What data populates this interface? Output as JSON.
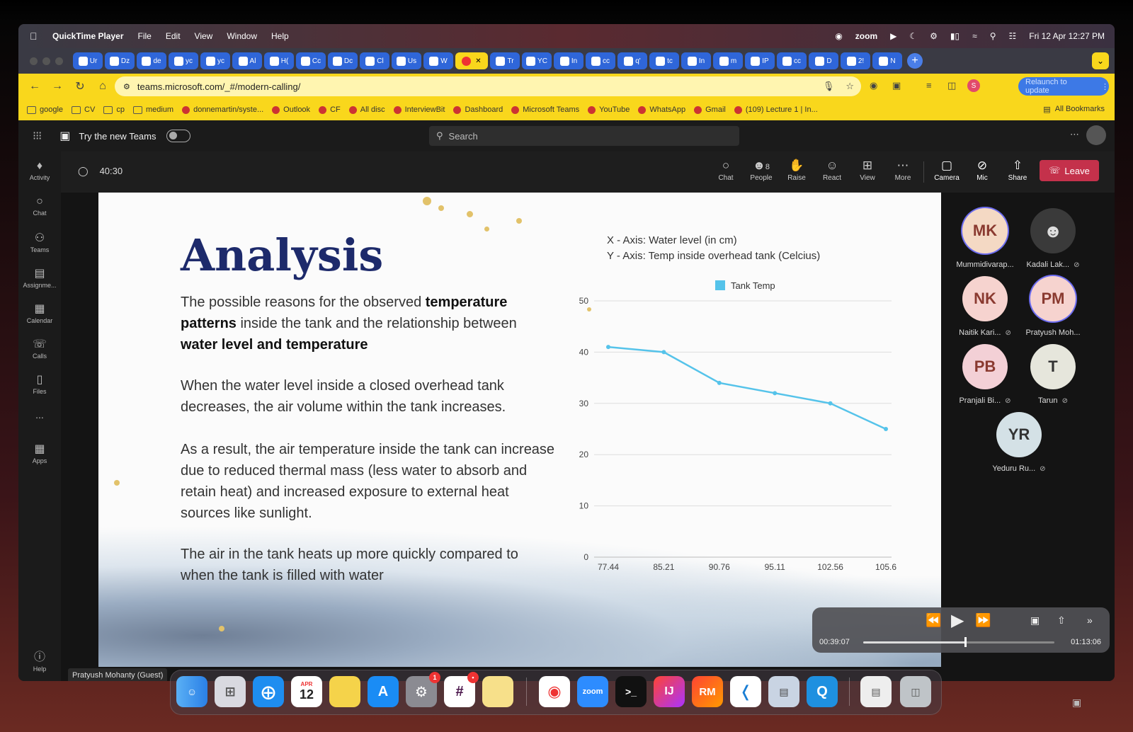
{
  "menubar": {
    "app_name": "QuickTime Player",
    "menus": [
      "File",
      "Edit",
      "View",
      "Window",
      "Help"
    ],
    "zoom_label": "zoom",
    "datetime": "Fri 12 Apr  12:27 PM"
  },
  "browser": {
    "tabs": [
      "Ur",
      "Dz",
      "de",
      "yc",
      "yc",
      "Al",
      "H(",
      "Cc",
      "Dc",
      "Cl",
      "Us",
      "W",
      "",
      "Tr",
      "YC",
      "In",
      "cc",
      "q'",
      "tc",
      "In",
      "m",
      "IP",
      "cc",
      "D",
      "2!",
      "N"
    ],
    "url": "teams.microsoft.com/_#/modern-calling/",
    "relaunch_label": "Relaunch to update",
    "bookmarks": [
      "google",
      "CV",
      "cp",
      "medium",
      "donnemartin/syste...",
      "Outlook",
      "CF",
      "All disc",
      "InterviewBit",
      "Dashboard",
      "Microsoft Teams",
      "YouTube",
      "WhatsApp",
      "Gmail",
      "(109) Lecture 1 | In..."
    ],
    "all_bookmarks": "All Bookmarks"
  },
  "teams": {
    "try_new": "Try the new Teams",
    "search_placeholder": "Search",
    "rail": [
      "Activity",
      "Chat",
      "Teams",
      "Assignme...",
      "Calendar",
      "Calls",
      "Files",
      "...",
      "Apps",
      "Help"
    ],
    "timer": "40:30",
    "toolbar": {
      "chat": "Chat",
      "people": "People",
      "people_count": "8",
      "raise": "Raise",
      "react": "React",
      "view": "View",
      "more": "More",
      "camera": "Camera",
      "mic": "Mic",
      "share": "Share",
      "leave": "Leave"
    },
    "presenter_tag": "Pratyush Mohanty (Guest)",
    "participants": [
      {
        "initials": "MK",
        "name": "Mummidivarap...",
        "color": "#f4d9c4"
      },
      {
        "initials": "",
        "name": "Kadali Lak...",
        "color": "#3a3a3a"
      },
      {
        "initials": "NK",
        "name": "Naitik Kari...",
        "color": "#f6d3cf"
      },
      {
        "initials": "PM",
        "name": "Pratyush Moh...",
        "color": "#f6d3cf"
      },
      {
        "initials": "PB",
        "name": "Pranjali Bi...",
        "color": "#f3d0d6"
      },
      {
        "initials": "T",
        "name": "Tarun",
        "color": "#e6e6dc"
      },
      {
        "initials": "YR",
        "name": "Yeduru Ru...",
        "color": "#d4e1e6"
      }
    ]
  },
  "slide": {
    "title": "Analysis",
    "p1_a": "The possible reasons for the observed ",
    "p1_b": "temperature patterns",
    "p1_c": " inside the tank and the relationship between ",
    "p1_d": "water level and temperature",
    "p2": "When the water level inside a closed overhead tank decreases, the air volume within the tank increases.",
    "p3": "As a result, the air temperature inside the tank can increase due to reduced thermal mass (less water to absorb and retain heat) and increased exposure to external heat sources like sunlight.",
    "p4": "The air in the tank heats up more quickly compared to when the tank is filled with water"
  },
  "chart_data": {
    "type": "line",
    "xaxis_note": "X - Axis: Water level (in cm)",
    "yaxis_note": "Y - Axis: Temp inside overhead tank (Celcius)",
    "categories": [
      "77.44",
      "85.21",
      "90.76",
      "95.11",
      "102.56",
      "105.6"
    ],
    "series": [
      {
        "name": "Tank Temp",
        "values": [
          41,
          40,
          34,
          32,
          30,
          25
        ],
        "color": "#55c3ea"
      }
    ],
    "ylim": [
      0,
      50
    ],
    "yticks": [
      0,
      10,
      20,
      30,
      40,
      50
    ],
    "legend": "top",
    "grid": true
  },
  "quicktime": {
    "elapsed": "00:39:07",
    "total": "01:13:06",
    "progress": 0.535
  },
  "dock": {
    "calendar_month": "APR",
    "calendar_day": "12",
    "badge_settings": "1",
    "badge_slack": "•",
    "zoom": "zoom",
    "ij": "IJ",
    "rm": "RM"
  }
}
